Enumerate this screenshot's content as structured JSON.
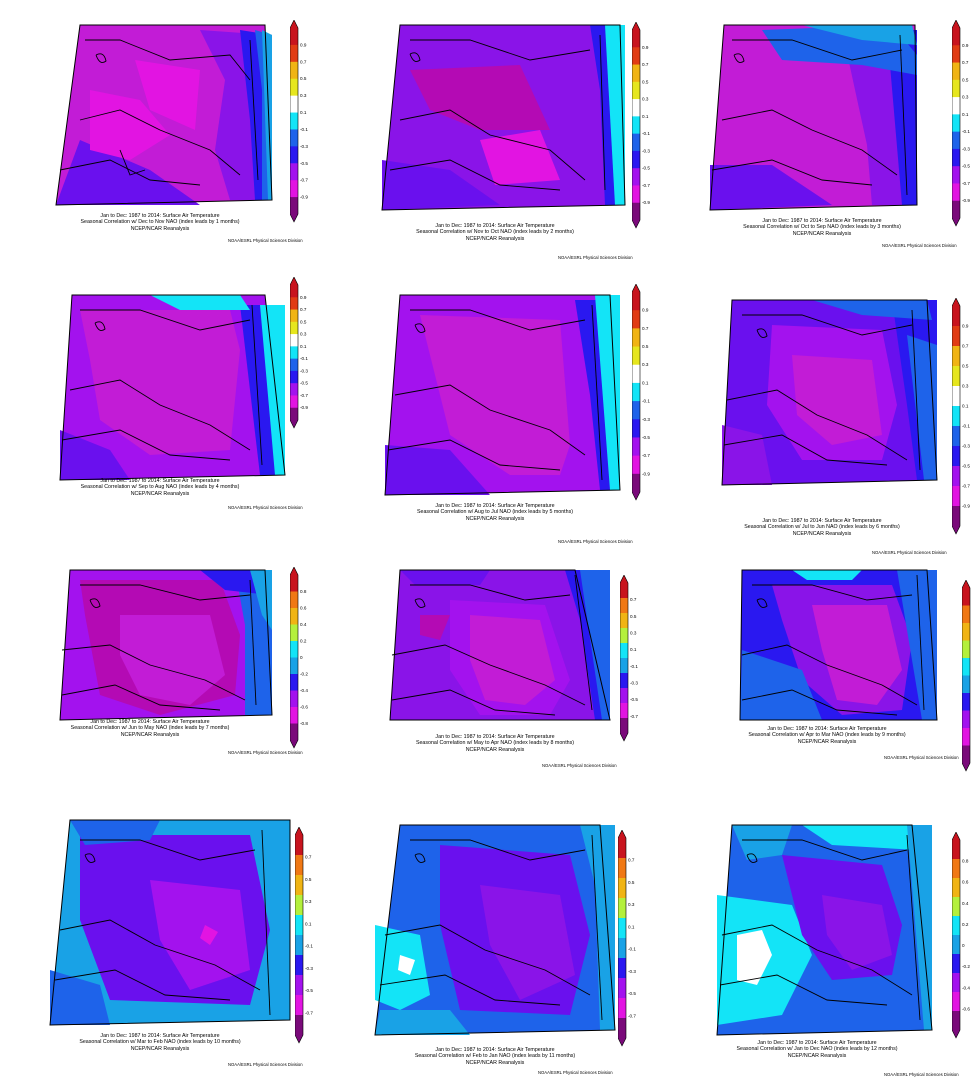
{
  "common": {
    "footer_credit": "NOAA/ESRL Physical Sciences Division",
    "dataset": "NCEP/NCAR Reanalysis"
  },
  "palette": [
    "#7a0a7a",
    "#b40ab4",
    "#e214e2",
    "#a312ee",
    "#6a10ee",
    "#2a18f0",
    "#1e63ea",
    "#19a2e6",
    "#13e4f7",
    "#ffffff",
    "#b4f03c",
    "#e6e61e",
    "#f0b414",
    "#f07814",
    "#e13c14",
    "#c8141e"
  ],
  "maps": [
    {
      "id": 1,
      "line1": "Jan to Dec: 1987 to 2014: Surface Air Temperature",
      "line2": "Seasonal Correlation w/ Dec to Nov NAO (index leads by 1 months)",
      "line3": "NCEP/NCAR Reanalysis",
      "credit": "",
      "colorbar": [
        "0.9",
        "0.7",
        "0.5",
        "0.3",
        "0.1",
        "-0.1",
        "-0.3",
        "-0.5",
        "-0.7",
        "-0.9"
      ]
    },
    {
      "id": 2,
      "line1": "Jan to Dec: 1987 to 2014: Surface Air Temperature",
      "line2": "Seasonal Correlation w/ Nov to Oct NAO (index leads by 2 months)",
      "line3": "NCEP/NCAR Reanalysis",
      "credit": "NOAA/ESRL Physical Sciences Division",
      "colorbar": [
        "0.9",
        "0.7",
        "0.5",
        "0.3",
        "0.1",
        "-0.1",
        "-0.3",
        "-0.5",
        "-0.7",
        "-0.9"
      ]
    },
    {
      "id": 3,
      "line1": "Jan to Dec: 1987 to 2014: Surface Air Temperature",
      "line2": "Seasonal Correlation w/ Oct to Sep NAO (index leads by 3 months)",
      "line3": "NCEP/NCAR Reanalysis",
      "credit": "NOAA/ESRL Physical Sciences Division",
      "colorbar": [
        "0.9",
        "0.7",
        "0.5",
        "0.3",
        "0.1",
        "-0.1",
        "-0.3",
        "-0.5",
        "-0.7",
        "-0.9"
      ]
    },
    {
      "id": 4,
      "line1": "Jan to Dec: 1987 to 2014: Surface Air Temperature",
      "line2": "Seasonal Correlation w/ Sep to Aug NAO (index leads by 4 months)",
      "line3": "NCEP/NCAR Reanalysis",
      "credit": "NOAA/ESRL Physical Sciences Division",
      "colorbar": [
        "0.9",
        "0.7",
        "0.5",
        "0.3",
        "0.1",
        "-0.1",
        "-0.3",
        "-0.5",
        "-0.7",
        "-0.9"
      ]
    },
    {
      "id": 5,
      "line1": "Jan to Dec: 1987 to 2014: Surface Air Temperature",
      "line2": "Seasonal Correlation w/ Aug to Jul NAO (index leads by 5 months)",
      "line3": "NCEP/NCAR Reanalysis",
      "credit": "NOAA/ESRL Physical Sciences Division",
      "colorbar": [
        "0.9",
        "0.7",
        "0.5",
        "0.3",
        "0.1",
        "-0.1",
        "-0.3",
        "-0.5",
        "-0.7",
        "-0.9"
      ]
    },
    {
      "id": 6,
      "line1": "Jan to Dec: 1987 to 2014: Surface Air Temperature",
      "line2": "Seasonal Correlation w/ Jul to Jun NAO (index leads by 6 months)",
      "line3": "NCEP/NCAR Reanalysis",
      "credit": "NOAA/ESRL Physical Sciences Division",
      "colorbar": [
        "0.9",
        "0.7",
        "0.5",
        "0.3",
        "0.1",
        "-0.1",
        "-0.3",
        "-0.5",
        "-0.7",
        "-0.9"
      ]
    },
    {
      "id": 7,
      "line1": "Jan to Dec: 1987 to 2014: Surface Air Temperature",
      "line2": "Seasonal Correlation w/ Jun to May NAO (index leads by 7 months)",
      "line3": "NCEP/NCAR Reanalysis",
      "credit": "NOAA/ESRL Physical Sciences Division",
      "colorbar": [
        "0.8",
        "0.6",
        "0.4",
        "0.2",
        "0",
        "-0.2",
        "-0.4",
        "-0.6",
        "-0.8"
      ]
    },
    {
      "id": 8,
      "line1": "Jan to Dec: 1987 to 2014: Surface Air Temperature",
      "line2": "Seasonal Correlation w/ May to Apr NAO (index leads by 8 months)",
      "line3": "NCEP/NCAR Reanalysis",
      "credit": "NOAA/ESRL Physical Sciences Division",
      "colorbar": [
        "0.7",
        "0.5",
        "0.3",
        "0.1",
        "-0.1",
        "-0.3",
        "-0.5",
        "-0.7"
      ]
    },
    {
      "id": 9,
      "line1": "Jan to Dec: 1987 to 2014: Surface Air Temperature",
      "line2": "Seasonal Correlation w/ Apr to Mar NAO (index leads by 9 months)",
      "line3": "NCEP/NCAR Reanalysis",
      "credit": "NOAA/ESRL Physical Sciences Division",
      "colorbar": []
    },
    {
      "id": 10,
      "line1": "Jan to Dec: 1987 to 2014: Surface Air Temperature",
      "line2": "Seasonal Correlation w/ Mar to Feb NAO (index leads by 10 months)",
      "line3": "NCEP/NCAR Reanalysis",
      "credit": "NOAA/ESRL Physical Sciences Division",
      "colorbar": [
        "0.7",
        "0.5",
        "0.3",
        "0.1",
        "-0.1",
        "-0.3",
        "-0.5",
        "-0.7"
      ]
    },
    {
      "id": 11,
      "line1": "Jan to Dec: 1987 to 2014: Surface Air Temperature",
      "line2": "Seasonal Correlation w/ Feb to Jan NAO (index leads by 11 months)",
      "line3": "NCEP/NCAR Reanalysis",
      "credit": "NOAA/ESRL Physical Sciences Division",
      "colorbar": [
        "0.7",
        "0.5",
        "0.3",
        "0.1",
        "-0.1",
        "-0.3",
        "-0.5",
        "-0.7"
      ]
    },
    {
      "id": 12,
      "line1": "Jan to Dec: 1987 to 2014: Surface Air Temperature",
      "line2": "Seasonal Correlation w/ Jan to Dec NAO (index leads by 12 months)",
      "line3": "NCEP/NCAR Reanalysis",
      "credit": "NOAA/ESRL Physical Sciences Division",
      "colorbar": [
        "0.8",
        "0.6",
        "0.4",
        "0.2",
        "0",
        "-0.2",
        "-0.4",
        "-0.6"
      ]
    }
  ]
}
